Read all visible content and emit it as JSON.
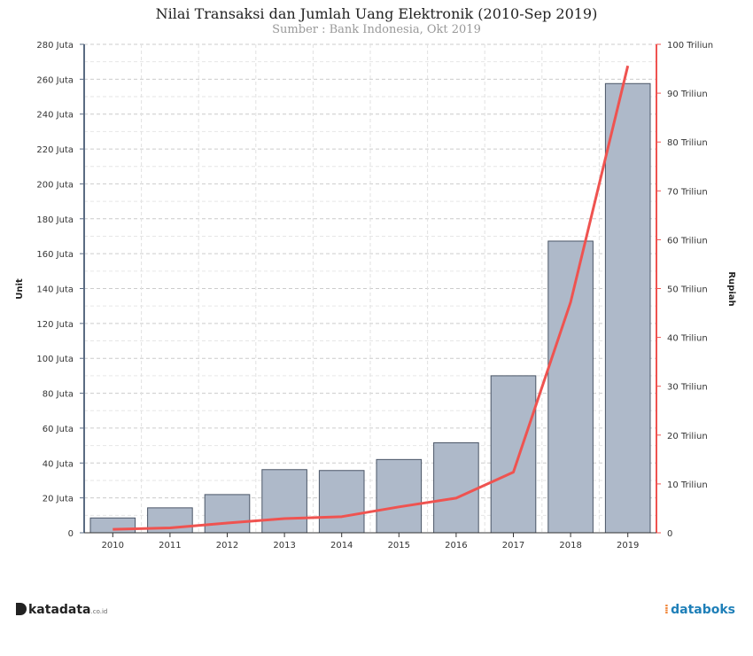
{
  "chart_data": {
    "type": "bar+line",
    "title": "Nilai Transaksi dan Jumlah Uang Elektronik (2010-Sep 2019)",
    "subtitle": "Sumber : Bank Indonesia, Okt 2019",
    "categories": [
      "2010",
      "2011",
      "2012",
      "2013",
      "2014",
      "2015",
      "2016",
      "2017",
      "2018",
      "2019"
    ],
    "ylabel_left": "Unit",
    "ylabel_right": "Rupiah",
    "yticks_left": [
      "0",
      "20 Juta",
      "40 Juta",
      "60 Juta",
      "80 Juta",
      "100 Juta",
      "120 Juta",
      "140 Juta",
      "160 Juta",
      "180 Juta",
      "200 Juta",
      "220 Juta",
      "240 Juta",
      "260 Juta",
      "280 Juta"
    ],
    "yticks_right": [
      "0",
      "10 Triliun",
      "20 Triliun",
      "30 Triliun",
      "40 Triliun",
      "50 Triliun",
      "60 Triliun",
      "70 Triliun",
      "80 Triliun",
      "90 Triliun",
      "100 Triliun"
    ],
    "ylim_left": [
      0,
      280
    ],
    "ylim_right": [
      0,
      100
    ],
    "grid": true,
    "series": [
      {
        "type": "bar",
        "axis": "left",
        "color": "#aeb9c9",
        "values": [
          8.5,
          14.3,
          21.9,
          36.2,
          35.7,
          42.0,
          51.6,
          90.0,
          167.2,
          257.5
        ]
      },
      {
        "type": "line",
        "axis": "right",
        "color": "#ef5350",
        "values": [
          0.7,
          1.0,
          2.0,
          2.9,
          3.3,
          5.3,
          7.1,
          12.4,
          47.2,
          95.6
        ]
      }
    ]
  },
  "branding": {
    "left": "katadata",
    "left_suffix": ".co.id",
    "right": "databoks"
  }
}
